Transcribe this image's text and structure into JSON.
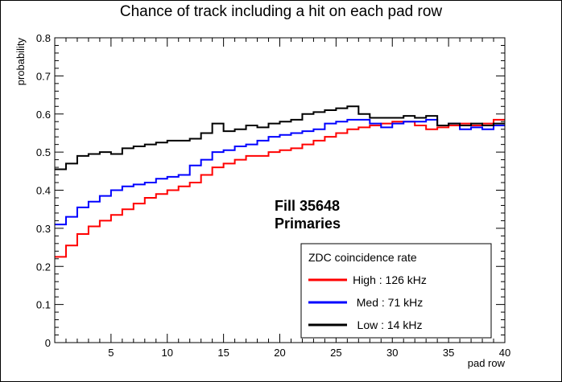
{
  "chart_data": {
    "type": "line",
    "title": "Chance of track including a hit on each pad row",
    "xlabel": "pad row",
    "ylabel": "probability",
    "xlim": [
      0,
      40
    ],
    "ylim": [
      0,
      0.8
    ],
    "x_ticks": [
      5,
      10,
      15,
      20,
      25,
      30,
      35,
      40
    ],
    "y_ticks": [
      0,
      0.1,
      0.2,
      0.3,
      0.4,
      0.5,
      0.6,
      0.7,
      0.8
    ],
    "y_tick_labels": [
      "0",
      "0.1",
      "0.2",
      "0.3",
      "0.4",
      "0.5",
      "0.6",
      "0.7",
      "0.8"
    ],
    "grid": false,
    "legend_placement": "bottom-right",
    "legend_title": "ZDC coincidence rate",
    "annotations": [
      "Fill 35648",
      "Primaries"
    ],
    "series": [
      {
        "name": "High : 126 kHz",
        "color": "#ff0000",
        "values": [
          0.225,
          0.255,
          0.285,
          0.305,
          0.32,
          0.335,
          0.35,
          0.365,
          0.38,
          0.39,
          0.4,
          0.41,
          0.42,
          0.44,
          0.46,
          0.47,
          0.48,
          0.49,
          0.49,
          0.5,
          0.505,
          0.51,
          0.52,
          0.53,
          0.54,
          0.55,
          0.56,
          0.565,
          0.57,
          0.575,
          0.58,
          0.58,
          0.57,
          0.56,
          0.565,
          0.57,
          0.575,
          0.57,
          0.575,
          0.585
        ]
      },
      {
        "name": "Med : 71 kHz",
        "color": "#0000ff",
        "values": [
          0.31,
          0.33,
          0.355,
          0.37,
          0.385,
          0.4,
          0.41,
          0.415,
          0.42,
          0.43,
          0.435,
          0.44,
          0.465,
          0.48,
          0.5,
          0.505,
          0.515,
          0.52,
          0.53,
          0.54,
          0.545,
          0.55,
          0.555,
          0.56,
          0.575,
          0.58,
          0.585,
          0.585,
          0.575,
          0.565,
          0.575,
          0.58,
          0.58,
          0.585,
          0.57,
          0.575,
          0.56,
          0.565,
          0.56,
          0.57
        ]
      },
      {
        "name": "Low : 14 kHz",
        "color": "#000000",
        "values": [
          0.455,
          0.47,
          0.49,
          0.495,
          0.5,
          0.495,
          0.51,
          0.515,
          0.52,
          0.525,
          0.53,
          0.53,
          0.535,
          0.55,
          0.575,
          0.555,
          0.56,
          0.57,
          0.565,
          0.575,
          0.58,
          0.585,
          0.6,
          0.605,
          0.61,
          0.615,
          0.62,
          0.6,
          0.59,
          0.59,
          0.59,
          0.595,
          0.59,
          0.595,
          0.57,
          0.575,
          0.57,
          0.575,
          0.57,
          0.575
        ]
      }
    ]
  }
}
